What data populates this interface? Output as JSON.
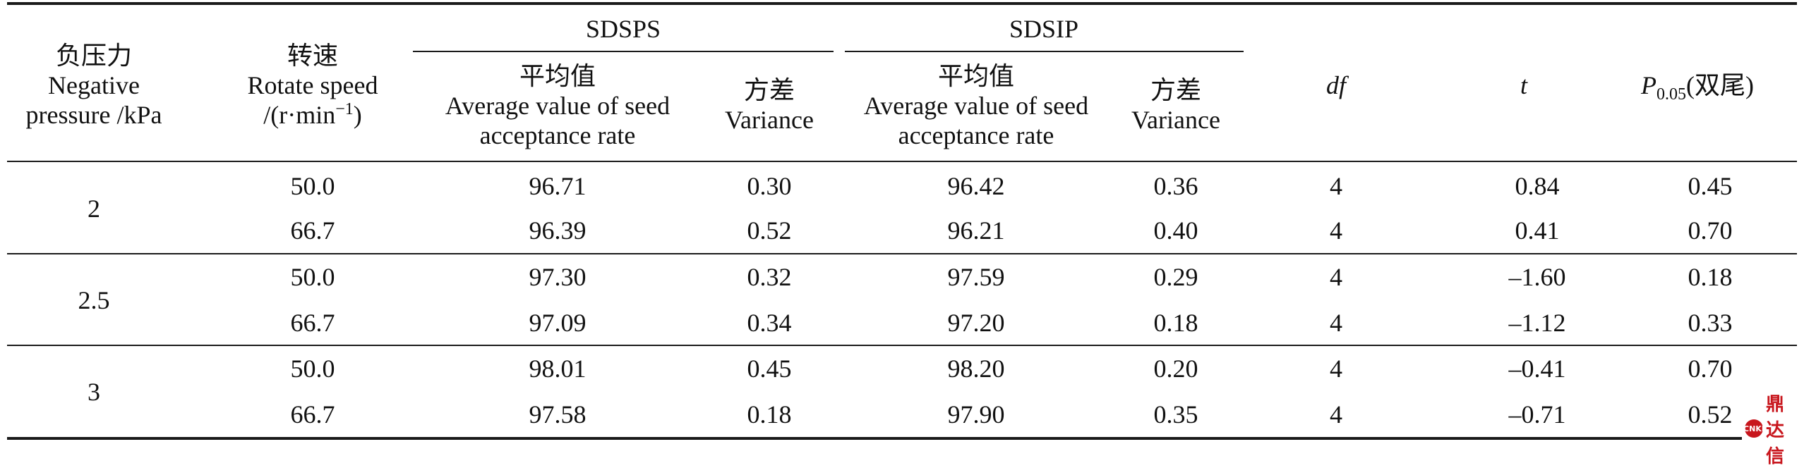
{
  "header": {
    "pressure": [
      "负压力",
      "Negative",
      "pressure /kPa"
    ],
    "speed": {
      "zh": "转速",
      "en": "Rotate speed",
      "unit_open": "/(r·min",
      "unit_sup": "−1",
      "unit_close": ")"
    },
    "group_a": "SDSPS",
    "group_b": "SDSIP",
    "avg": [
      "平均值",
      "Average value of seed",
      "acceptance rate"
    ],
    "var": [
      "方差",
      "Variance"
    ],
    "df": "df",
    "t": "t",
    "p": {
      "symbol": "P",
      "sub": "0.05",
      "suffix": "(双尾)"
    }
  },
  "rows": [
    {
      "speed": "50.0",
      "a_avg": "96.71",
      "a_var": "0.30",
      "b_avg": "96.42",
      "b_var": "0.36",
      "df": "4",
      "t": "0.84",
      "p": "0.45"
    },
    {
      "speed": "66.7",
      "a_avg": "96.39",
      "a_var": "0.52",
      "b_avg": "96.21",
      "b_var": "0.40",
      "df": "4",
      "t": "0.41",
      "p": "0.70"
    },
    {
      "speed": "50.0",
      "a_avg": "97.30",
      "a_var": "0.32",
      "b_avg": "97.59",
      "b_var": "0.29",
      "df": "4",
      "t": "–1.60",
      "p": "0.18"
    },
    {
      "speed": "66.7",
      "a_avg": "97.09",
      "a_var": "0.34",
      "b_avg": "97.20",
      "b_var": "0.18",
      "df": "4",
      "t": "–1.12",
      "p": "0.33"
    },
    {
      "speed": "50.0",
      "a_avg": "98.01",
      "a_var": "0.45",
      "b_avg": "98.20",
      "b_var": "0.20",
      "df": "4",
      "t": "–0.41",
      "p": "0.70"
    },
    {
      "speed": "66.7",
      "a_avg": "97.58",
      "a_var": "0.18",
      "b_avg": "97.90",
      "b_var": "0.35",
      "df": "4",
      "t": "–0.71",
      "p": "0.52"
    }
  ],
  "pressures": [
    "2",
    "2.5",
    "3"
  ],
  "watermark": {
    "badge": "CNKI",
    "text": "鼎达信"
  }
}
